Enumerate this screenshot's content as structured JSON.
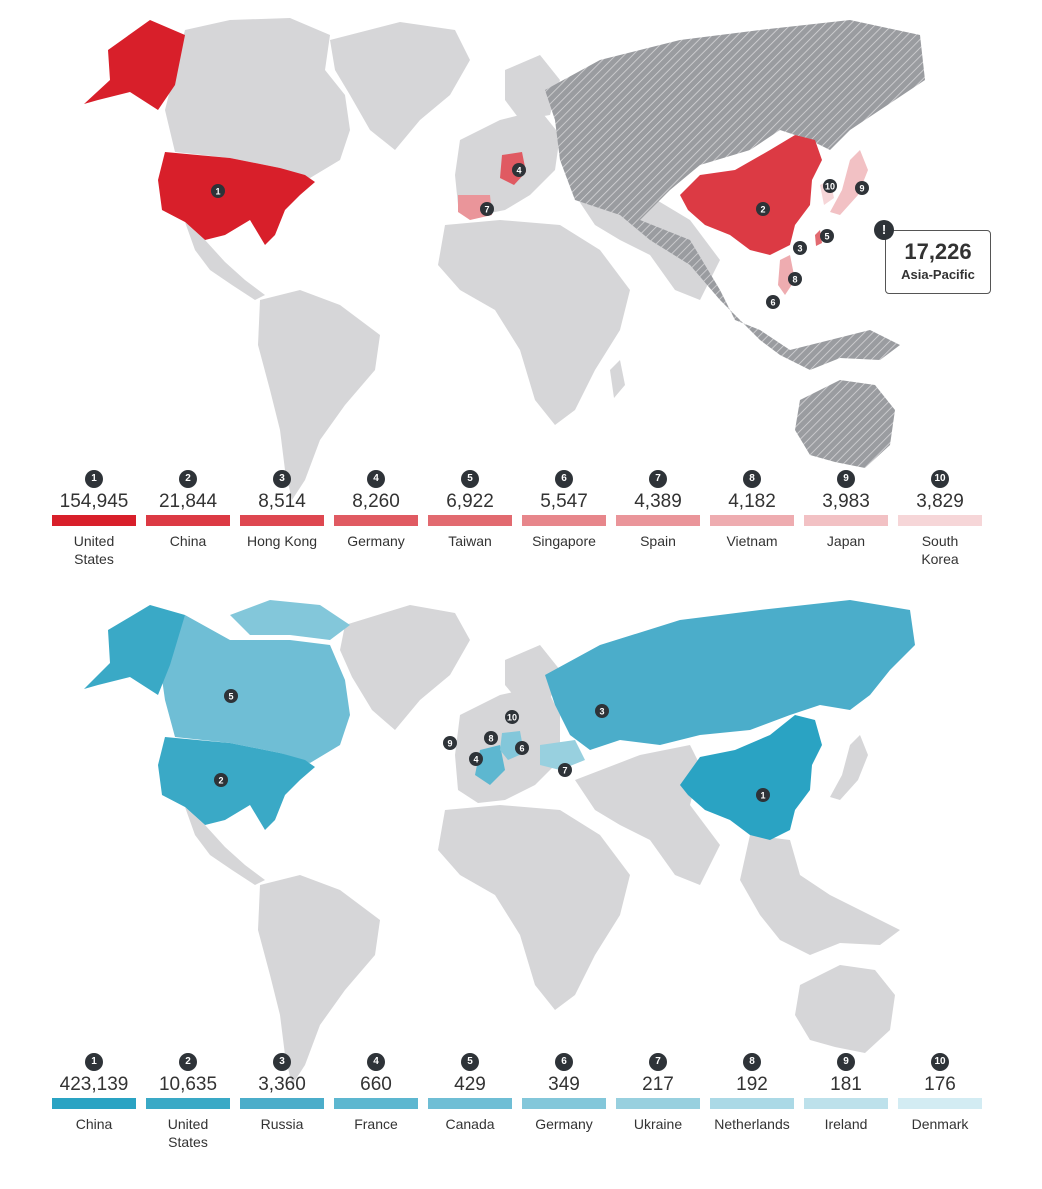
{
  "colors": {
    "land": "#d6d6d8",
    "land_hatched": "#9a9ca0",
    "marker": "#2e3338",
    "red_scale": [
      "#d81f2a",
      "#dc3a44",
      "#de4750",
      "#e05a62",
      "#e26a70",
      "#e7868b",
      "#ea959a",
      "#eeacb0",
      "#f2c1c4",
      "#f6d6d8"
    ],
    "blue_scale": [
      "#2aa3c3",
      "#3aa9c6",
      "#4badca",
      "#5db7d0",
      "#6fbed5",
      "#83c7da",
      "#98d0df",
      "#abd9e6",
      "#bde1eb",
      "#d3ecf3"
    ]
  },
  "top": {
    "callout": {
      "badge": "!",
      "value": "17,226",
      "label": "Asia-Pacific"
    },
    "items": [
      {
        "rank": "1",
        "value": "154,945",
        "label": "United\nStates"
      },
      {
        "rank": "2",
        "value": "21,844",
        "label": "China"
      },
      {
        "rank": "3",
        "value": "8,514",
        "label": "Hong Kong"
      },
      {
        "rank": "4",
        "value": "8,260",
        "label": "Germany"
      },
      {
        "rank": "5",
        "value": "6,922",
        "label": "Taiwan"
      },
      {
        "rank": "6",
        "value": "5,547",
        "label": "Singapore"
      },
      {
        "rank": "7",
        "value": "4,389",
        "label": "Spain"
      },
      {
        "rank": "8",
        "value": "4,182",
        "label": "Vietnam"
      },
      {
        "rank": "9",
        "value": "3,983",
        "label": "Japan"
      },
      {
        "rank": "10",
        "value": "3,829",
        "label": "South\nKorea"
      }
    ]
  },
  "bottom": {
    "items": [
      {
        "rank": "1",
        "value": "423,139",
        "label": "China"
      },
      {
        "rank": "2",
        "value": "10,635",
        "label": "United\nStates"
      },
      {
        "rank": "3",
        "value": "3,360",
        "label": "Russia"
      },
      {
        "rank": "4",
        "value": "660",
        "label": "France"
      },
      {
        "rank": "5",
        "value": "429",
        "label": "Canada"
      },
      {
        "rank": "6",
        "value": "349",
        "label": "Germany"
      },
      {
        "rank": "7",
        "value": "217",
        "label": "Ukraine"
      },
      {
        "rank": "8",
        "value": "192",
        "label": "Netherlands"
      },
      {
        "rank": "9",
        "value": "181",
        "label": "Ireland"
      },
      {
        "rank": "10",
        "value": "176",
        "label": "Denmark"
      }
    ]
  }
}
